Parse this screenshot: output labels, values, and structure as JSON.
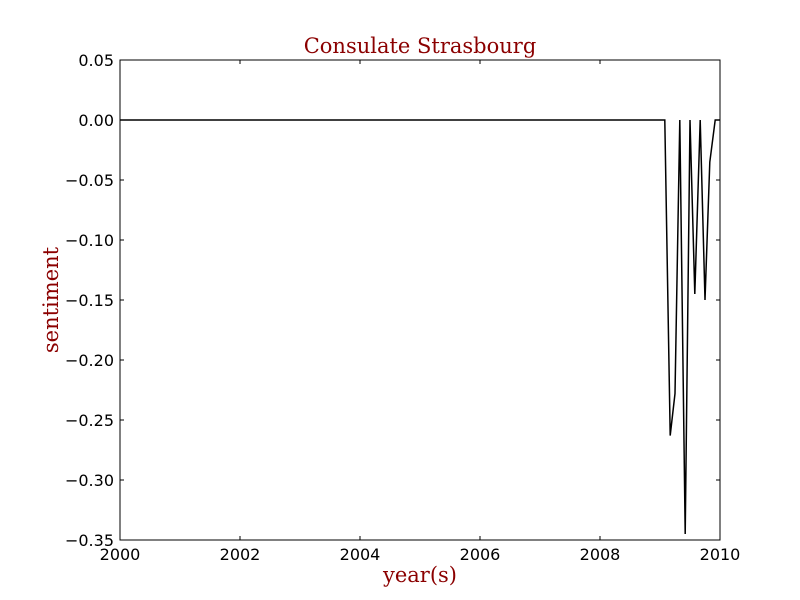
{
  "chart_data": {
    "type": "line",
    "title": "Consulate Strasbourg",
    "xlabel": "year(s)",
    "ylabel": "sentiment",
    "xlim": [
      2000,
      2010
    ],
    "ylim": [
      -0.35,
      0.05
    ],
    "xticks": [
      2000,
      2002,
      2004,
      2006,
      2008,
      2010
    ],
    "xtick_labels": [
      "2000",
      "2002",
      "2004",
      "2006",
      "2008",
      "2010"
    ],
    "yticks": [
      0.05,
      0.0,
      -0.05,
      -0.1,
      -0.15,
      -0.2,
      -0.25,
      -0.3,
      -0.35
    ],
    "ytick_labels": [
      "0.05",
      "0.00",
      "−0.05",
      "−0.10",
      "−0.15",
      "−0.20",
      "−0.25",
      "−0.30",
      "−0.35"
    ],
    "grid": false,
    "series": [
      {
        "color": "#000000",
        "x": [
          2000.0,
          2009.08,
          2009.17,
          2009.25,
          2009.33,
          2009.42,
          2009.5,
          2009.58,
          2009.67,
          2009.75,
          2009.83,
          2009.92,
          2010.0
        ],
        "y": [
          0.0,
          0.0,
          -0.263,
          -0.228,
          0.0,
          -0.345,
          0.0,
          -0.145,
          0.0,
          -0.15,
          -0.035,
          0.0,
          0.0
        ]
      }
    ]
  }
}
